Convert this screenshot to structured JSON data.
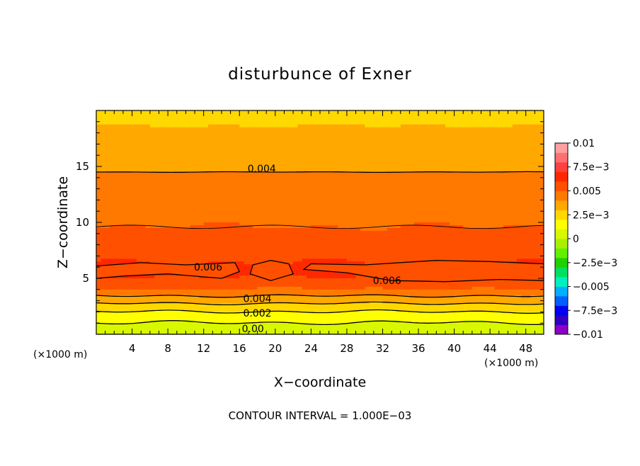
{
  "chart_data": {
    "type": "heatmap",
    "title": "disturbunce of Exner",
    "xlabel": "X−coordinate",
    "ylabel": "Z−coordinate",
    "x_unit": "(×1000 m)",
    "y_unit": "(×1000 m)",
    "footer": "CONTOUR INTERVAL = 1.000E−03",
    "xlim": [
      0,
      50
    ],
    "ylim": [
      0,
      20
    ],
    "x_ticks": [
      4,
      8,
      12,
      16,
      20,
      24,
      28,
      32,
      36,
      40,
      44,
      48
    ],
    "y_ticks": [
      5,
      10,
      15
    ],
    "colorbar": {
      "range": [
        -0.01,
        0.01
      ],
      "tick_values": [
        0.01,
        0.0075,
        0.005,
        0.0025,
        0,
        -0.0025,
        -0.005,
        -0.0075,
        -0.01
      ],
      "tick_labels": [
        "0.01",
        "7.5e−3",
        "0.005",
        "2.5e−3",
        "0",
        "−2.5e−3",
        "−0.005",
        "−7.5e−3",
        "−0.01"
      ]
    },
    "contour_labels": [
      {
        "text": "0.004",
        "x": 18.5,
        "z": 14.8,
        "level": 0.004
      },
      {
        "text": "0.006",
        "x": 12.5,
        "z": 6.0,
        "level": 0.006
      },
      {
        "text": "0.006",
        "x": 32.5,
        "z": 4.8,
        "level": 0.006
      },
      {
        "text": "0.004",
        "x": 18.0,
        "z": 3.2,
        "level": 0.004
      },
      {
        "text": "0.002",
        "x": 18.0,
        "z": 1.9,
        "level": 0.002
      },
      {
        "text": "0.00",
        "x": 17.5,
        "z": 0.5,
        "level": 0.0
      }
    ],
    "profile_note": "values vary mainly with height; maximum ~0.0065 near z=5-6",
    "profile": [
      {
        "z": 0.0,
        "value": 0.0002
      },
      {
        "z": 0.8,
        "value": 0.0008
      },
      {
        "z": 1.5,
        "value": 0.0014
      },
      {
        "z": 2.2,
        "value": 0.0022
      },
      {
        "z": 2.9,
        "value": 0.0032
      },
      {
        "z": 3.5,
        "value": 0.0041
      },
      {
        "z": 4.2,
        "value": 0.0052
      },
      {
        "z": 5.5,
        "value": 0.0063
      },
      {
        "z": 7.0,
        "value": 0.0058
      },
      {
        "z": 8.5,
        "value": 0.0053
      },
      {
        "z": 9.6,
        "value": 0.005
      },
      {
        "z": 11.5,
        "value": 0.0047
      },
      {
        "z": 13.5,
        "value": 0.0043
      },
      {
        "z": 15.5,
        "value": 0.0037
      },
      {
        "z": 17.5,
        "value": 0.0033
      },
      {
        "z": 19.0,
        "value": 0.0029
      },
      {
        "z": 20.0,
        "value": 0.0027
      }
    ],
    "colors": {
      "band_0_001": "#60f000",
      "band_001_002": "#a8f000",
      "band_002_003": "#d8f800",
      "band_003_004": "#ffff00",
      "band_004_005": "#ffd800",
      "band_005_006": "#ffa800",
      "band_006_007": "#ff7800",
      "band_007_008": "#ff5000",
      "contour": "#000000"
    }
  }
}
